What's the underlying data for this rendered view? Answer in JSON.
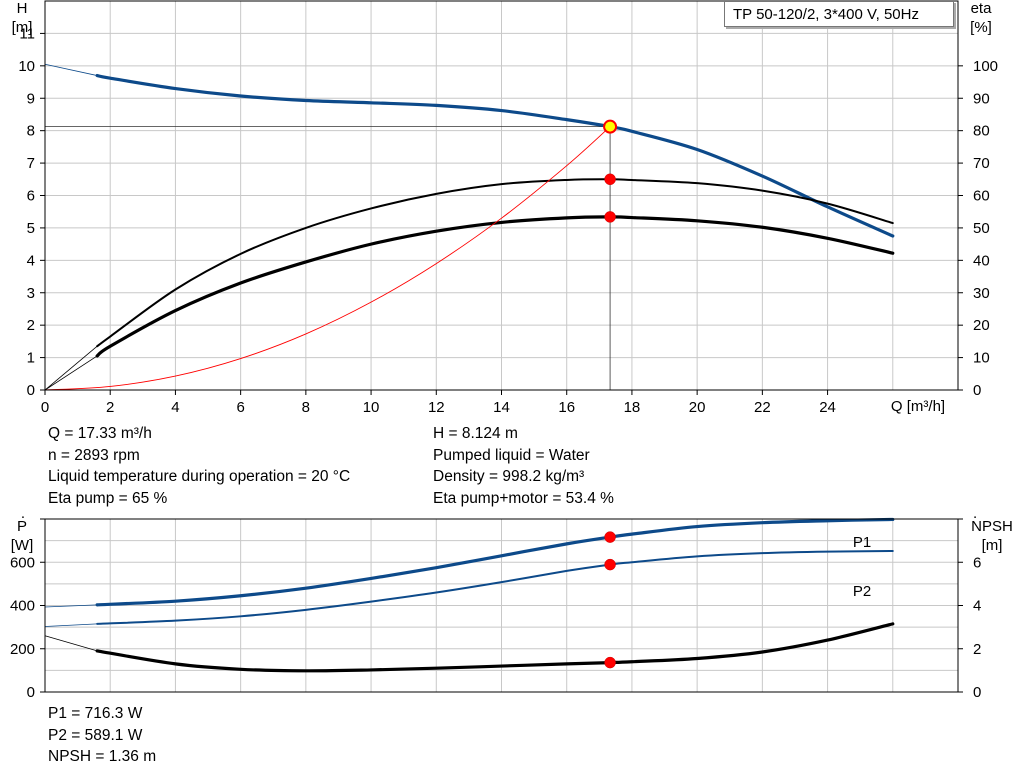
{
  "title": "TP 50-120/2, 3*400 V, 50Hz",
  "operating_point": {
    "q": "Q = 17.33 m³/h",
    "n": "n = 2893 rpm",
    "liquid_temp": "Liquid temperature during operation = 20 °C",
    "eta_pump": "Eta pump = 65 %",
    "h": "H = 8.124 m",
    "pumped_liquid": "Pumped liquid = Water",
    "density": "Density = 998.2 kg/m³",
    "eta_pump_motor": "Eta pump+motor = 53.4 %"
  },
  "power_point": {
    "p1": "P1 = 716.3 W",
    "p2": "P2 = 589.1 W",
    "npsh": "NPSH = 1.36 m"
  },
  "colors": {
    "head_curve": "#0d4a8a",
    "power_curve": "#0d4a8a",
    "efficiency_curve": "#000000",
    "system_curve": "#ff0000",
    "grid": "#c8c8c8",
    "marker": "#ff0000",
    "duty_marker_fill": "#ffff00"
  },
  "chart_data": [
    {
      "type": "line",
      "title": "",
      "xlabel": "Q [m³/h]",
      "x_ticks": [
        0,
        2,
        4,
        6,
        8,
        10,
        12,
        14,
        16,
        18,
        20,
        22,
        24
      ],
      "xlim": [
        0,
        28
      ],
      "ylabel_left": "H\n[m]",
      "ylim_left": [
        0,
        12
      ],
      "y_ticks_left": [
        0,
        1,
        2,
        3,
        4,
        5,
        6,
        7,
        8,
        9,
        10,
        11
      ],
      "ylabel_right": "eta\n[%]",
      "ylim_right": [
        0,
        120
      ],
      "y_ticks_right": [
        0,
        10,
        20,
        30,
        40,
        50,
        60,
        70,
        80,
        90,
        100
      ],
      "grid": true,
      "duty_point": {
        "x": 17.33,
        "y": 8.124
      },
      "series": [
        {
          "axis": "left",
          "style": "thick-blue",
          "x": [
            1.6,
            2,
            4,
            6,
            8,
            10,
            12,
            14,
            16,
            17.33,
            18,
            20,
            22,
            24,
            26
          ],
          "y": [
            9.7,
            9.62,
            9.3,
            9.07,
            8.93,
            8.86,
            8.78,
            8.62,
            8.34,
            8.124,
            7.98,
            7.42,
            6.6,
            5.65,
            4.75
          ]
        },
        {
          "axis": "left",
          "style": "thin-blue-extension",
          "x": [
            0,
            1.6
          ],
          "y": [
            10.05,
            9.7
          ]
        },
        {
          "axis": "right",
          "style": "black",
          "x": [
            1.6,
            2,
            4,
            6,
            8,
            10,
            12,
            14,
            16,
            17.33,
            18,
            20,
            22,
            24,
            26
          ],
          "y": [
            13.5,
            16.5,
            31,
            42,
            50,
            56,
            60.5,
            63.5,
            64.8,
            65,
            64.8,
            63.8,
            61.5,
            57.5,
            51.5
          ]
        },
        {
          "axis": "right",
          "style": "thick-black",
          "x": [
            1.6,
            2,
            4,
            6,
            8,
            10,
            12,
            14,
            16,
            17.33,
            18,
            20,
            22,
            24,
            26
          ],
          "y": [
            10.5,
            13.5,
            24.5,
            33,
            39.5,
            45,
            49,
            51.7,
            53.1,
            53.4,
            53.2,
            52.2,
            50.2,
            46.8,
            42.2
          ]
        },
        {
          "axis": "right",
          "style": "thin-black-extension",
          "x": [
            0,
            1.6
          ],
          "y": [
            0,
            13.5
          ]
        },
        {
          "axis": "right",
          "style": "thin-black-extension",
          "x": [
            0,
            1.6
          ],
          "y": [
            0,
            10.5
          ]
        },
        {
          "axis": "left",
          "style": "thin-red-system",
          "x": [
            0,
            2,
            4,
            6,
            8,
            10,
            12,
            14,
            16,
            17.33
          ],
          "y": [
            0,
            0.11,
            0.43,
            0.97,
            1.73,
            2.71,
            3.9,
            5.3,
            6.92,
            8.124
          ]
        }
      ],
      "markers": [
        {
          "axis": "left",
          "x": 17.33,
          "y": 8.124,
          "kind": "duty"
        },
        {
          "axis": "right",
          "x": 17.33,
          "y": 65,
          "kind": "point"
        },
        {
          "axis": "right",
          "x": 17.33,
          "y": 53.4,
          "kind": "point"
        }
      ]
    },
    {
      "type": "line",
      "title": "",
      "xlim": [
        0,
        28
      ],
      "ylabel_left": "P\n[W]",
      "ylim_left": [
        0,
        800
      ],
      "y_ticks_left": [
        0,
        200,
        400,
        600
      ],
      "ylabel_right": "NPSH\n[m]",
      "ylim_right": [
        0,
        8
      ],
      "y_ticks_right": [
        0,
        2,
        4,
        6
      ],
      "grid": true,
      "series": [
        {
          "name": "P1",
          "axis": "left",
          "style": "thick-blue",
          "x": [
            1.6,
            4,
            6,
            8,
            10,
            12,
            14,
            16,
            17.33,
            18,
            20,
            22,
            24,
            26
          ],
          "y": [
            403,
            420,
            445,
            480,
            525,
            575,
            630,
            685,
            716.3,
            730,
            765,
            783,
            792,
            798
          ]
        },
        {
          "name": "P2",
          "axis": "left",
          "style": "blue",
          "x": [
            1.6,
            4,
            6,
            8,
            10,
            12,
            14,
            16,
            17.33,
            18,
            20,
            22,
            24,
            26
          ],
          "y": [
            315,
            330,
            350,
            380,
            418,
            460,
            508,
            560,
            589.1,
            600,
            627,
            642,
            649,
            652
          ]
        },
        {
          "axis": "left",
          "style": "thin-blue-extension",
          "x": [
            0,
            1.6
          ],
          "y": [
            393,
            403
          ]
        },
        {
          "axis": "left",
          "style": "thin-blue-extension",
          "x": [
            0,
            1.6
          ],
          "y": [
            303,
            315
          ]
        },
        {
          "axis": "right",
          "style": "thick-black",
          "x": [
            1.6,
            4,
            6,
            8,
            10,
            12,
            14,
            16,
            17.33,
            18,
            20,
            22,
            24,
            26
          ],
          "y": [
            1.9,
            1.3,
            1.05,
            0.98,
            1.02,
            1.1,
            1.2,
            1.3,
            1.36,
            1.4,
            1.55,
            1.85,
            2.4,
            3.15
          ]
        },
        {
          "axis": "right",
          "style": "thin-black-extension",
          "x": [
            0,
            1.6
          ],
          "y": [
            2.6,
            1.9
          ]
        }
      ],
      "markers": [
        {
          "axis": "left",
          "x": 17.33,
          "y": 716.3,
          "kind": "point"
        },
        {
          "axis": "left",
          "x": 17.33,
          "y": 589.1,
          "kind": "point"
        },
        {
          "axis": "right",
          "x": 17.33,
          "y": 1.36,
          "kind": "point"
        }
      ]
    }
  ]
}
